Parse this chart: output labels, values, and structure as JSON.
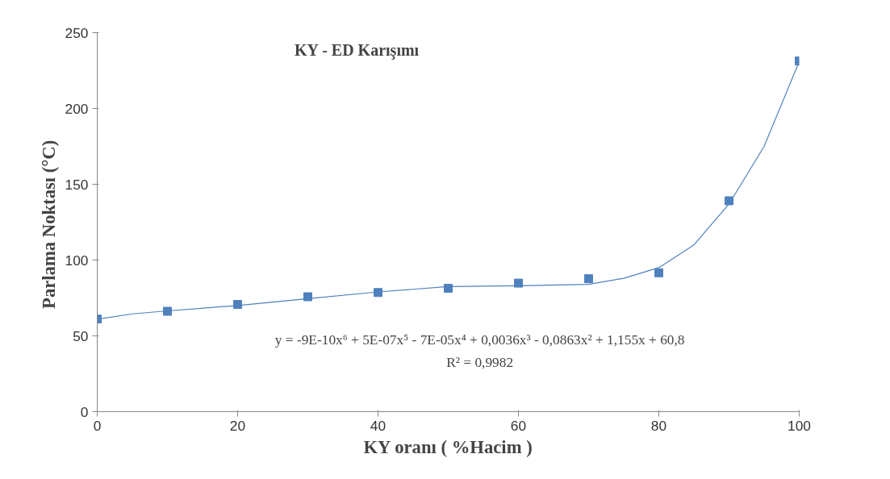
{
  "chart_data": {
    "type": "scatter",
    "title": "KY - ED Karışımı",
    "xlabel": "KY oranı ( %Hacim )",
    "ylabel": "Parlama Noktası  (°C)",
    "x": [
      0,
      10,
      20,
      30,
      40,
      50,
      60,
      70,
      80,
      90,
      100
    ],
    "series": [
      {
        "color": "#4f81bd",
        "values": [
          61.1,
          66.2,
          70.7,
          75.8,
          78.6,
          81.4,
          84.8,
          87.7,
          91.6,
          139.1,
          231.3
        ],
        "marker": "square"
      },
      {
        "type": "line",
        "color": "#4f81bd",
        "x": [
          0,
          5,
          10,
          20,
          30,
          40,
          50,
          60,
          70,
          75,
          80,
          85,
          90,
          95,
          100
        ],
        "values": [
          61,
          64.5,
          66.5,
          70,
          74.5,
          79,
          82.5,
          83,
          84,
          88,
          95,
          110,
          137,
          175,
          231
        ]
      }
    ],
    "annotations": [
      "y = -9E-10x⁶ + 5E-07x⁵ - 7E-05x⁴ + 0,0036x³ - 0,0863x² + 1,155x + 60,8",
      "R² = 0,9982"
    ],
    "xlim": [
      0,
      100
    ],
    "xticks": [
      0,
      20,
      40,
      60,
      80,
      100
    ],
    "ylim": [
      0,
      250
    ],
    "yticks": [
      0,
      50,
      100,
      150,
      200,
      250
    ],
    "grid": false
  }
}
